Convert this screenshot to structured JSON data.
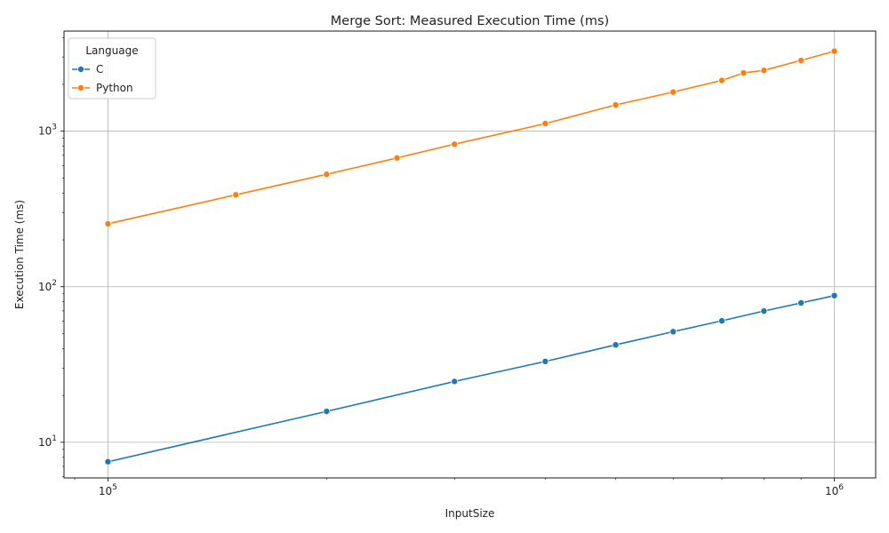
{
  "chart_data": {
    "type": "line",
    "title": "Merge Sort: Measured Execution Time (ms)",
    "xlabel": "InputSize",
    "ylabel": "Execution Time (ms)",
    "xscale": "log",
    "yscale": "log",
    "xlim": [
      87000,
      1140000
    ],
    "ylim": [
      5.9,
      4400
    ],
    "x_ticks": [
      {
        "value": 100000,
        "base": "10",
        "exp": "5"
      },
      {
        "value": 1000000,
        "base": "10",
        "exp": "6"
      }
    ],
    "y_ticks": [
      {
        "value": 10,
        "base": "10",
        "exp": "1"
      },
      {
        "value": 100,
        "base": "10",
        "exp": "2"
      },
      {
        "value": 1000,
        "base": "10",
        "exp": "3"
      }
    ],
    "grid": true,
    "legend": {
      "title": "Language",
      "position": "top-left"
    },
    "series": [
      {
        "name": "C",
        "color": "#1f77b4",
        "x": [
          100000,
          200000,
          300000,
          400000,
          500000,
          600000,
          700000,
          800000,
          900000,
          1000000
        ],
        "y": [
          7.5,
          15.8,
          24.6,
          33.1,
          42.3,
          51.4,
          60.4,
          69.8,
          78.7,
          87.7
        ]
      },
      {
        "name": "Python",
        "color": "#ff7f0e",
        "x": [
          100000,
          150000,
          200000,
          250000,
          300000,
          400000,
          500000,
          600000,
          700000,
          750000,
          800000,
          900000,
          1000000
        ],
        "y": [
          254,
          390,
          528,
          673,
          825,
          1120,
          1475,
          1785,
          2120,
          2370,
          2460,
          2850,
          3270
        ]
      }
    ]
  }
}
